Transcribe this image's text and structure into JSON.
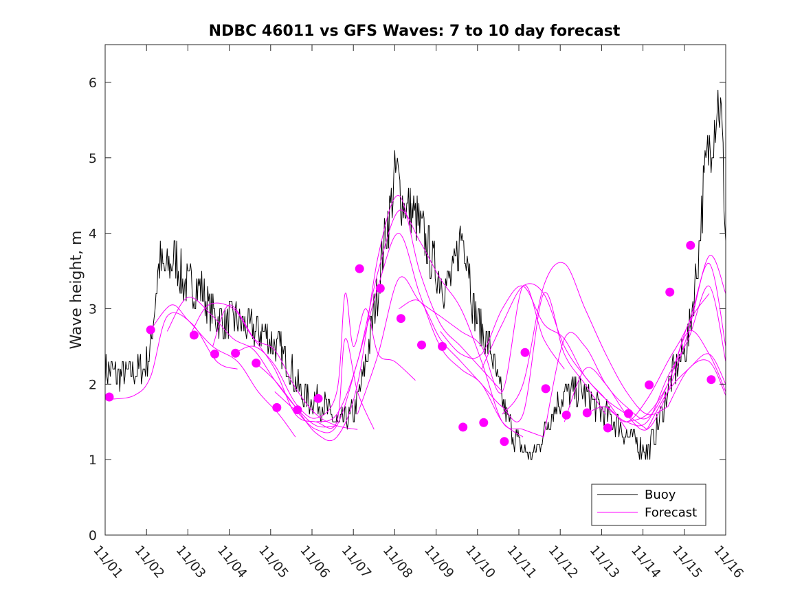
{
  "chart_data": {
    "type": "line",
    "title": "NDBC 46011 vs GFS Waves: 7 to 10 day forecast",
    "xlabel": "",
    "ylabel": "Wave height, m",
    "xlim": [
      0,
      15
    ],
    "ylim": [
      0,
      6.5
    ],
    "yticks": [
      0,
      1,
      2,
      3,
      4,
      5,
      6
    ],
    "ytick_labels": [
      "0",
      "1",
      "2",
      "3",
      "4",
      "5",
      "6"
    ],
    "x_unit": "days since 11/01",
    "xticks": [
      0,
      1,
      2,
      3,
      4,
      5,
      6,
      7,
      8,
      9,
      10,
      11,
      12,
      13,
      14,
      15
    ],
    "xtick_labels": [
      "11/01",
      "11/02",
      "11/03",
      "11/04",
      "11/05",
      "11/06",
      "11/07",
      "11/08",
      "11/09",
      "11/10",
      "11/11",
      "11/12",
      "11/13",
      "11/14",
      "11/15",
      "11/16"
    ],
    "legend": {
      "position": "bottom-right",
      "entries": [
        "Buoy",
        "Forecast"
      ]
    },
    "colors": {
      "buoy": "#000000",
      "forecast": "#ff00ff"
    },
    "buoy_anchors": {
      "x": [
        0,
        0.3,
        0.6,
        0.9,
        1.0,
        1.1,
        1.3,
        1.5,
        1.7,
        1.9,
        2.1,
        2.3,
        2.5,
        2.7,
        2.9,
        3.1,
        3.3,
        3.5,
        3.7,
        3.9,
        4.1,
        4.3,
        4.5,
        4.7,
        4.9,
        5.1,
        5.3,
        5.5,
        5.65,
        5.8,
        6.0,
        6.2,
        6.4,
        6.6,
        6.8,
        6.9,
        7.0,
        7.05,
        7.2,
        7.4,
        7.6,
        7.8,
        8.0,
        8.2,
        8.4,
        8.6,
        8.75,
        8.9,
        9.1,
        9.3,
        9.5,
        9.7,
        9.9,
        10.1,
        10.3,
        10.5,
        10.7,
        10.9,
        11.1,
        11.3,
        11.5,
        11.7,
        11.9,
        12.1,
        12.3,
        12.5,
        12.7,
        12.9,
        13.1,
        13.3,
        13.5,
        13.7,
        13.9,
        14.1,
        14.3,
        14.5,
        14.7,
        14.8,
        14.9,
        15.0
      ],
      "y": [
        2.2,
        2.1,
        2.15,
        2.2,
        2.3,
        2.5,
        3.6,
        3.5,
        3.7,
        3.3,
        3.3,
        3.3,
        3.0,
        2.9,
        2.8,
        2.9,
        2.8,
        2.75,
        2.7,
        2.65,
        2.5,
        2.4,
        2.2,
        1.9,
        1.8,
        1.8,
        1.7,
        1.55,
        1.45,
        1.5,
        1.6,
        2.0,
        2.6,
        3.3,
        4.1,
        4.3,
        4.7,
        4.8,
        4.4,
        4.3,
        4.1,
        3.8,
        3.5,
        3.3,
        3.4,
        4.0,
        3.8,
        3.0,
        2.7,
        2.5,
        2.0,
        1.6,
        1.3,
        1.15,
        1.05,
        1.2,
        1.5,
        1.7,
        1.85,
        1.9,
        1.9,
        1.8,
        1.7,
        1.6,
        1.5,
        1.4,
        1.3,
        1.2,
        1.1,
        1.35,
        1.7,
        2.1,
        2.3,
        2.6,
        3.5,
        4.8,
        5.4,
        5.8,
        5.5,
        3.9
      ]
    },
    "markers": {
      "x": [
        0.1,
        1.1,
        2.15,
        2.65,
        3.15,
        3.65,
        4.15,
        4.65,
        5.15,
        6.15,
        6.65,
        7.15,
        7.65,
        8.15,
        8.65,
        9.15,
        9.65,
        10.15,
        10.65,
        11.15,
        11.65,
        12.15,
        12.65,
        13.15,
        13.65,
        14.15,
        14.65
      ],
      "y": [
        1.83,
        2.72,
        2.65,
        2.4,
        2.41,
        2.28,
        1.69,
        1.66,
        1.81,
        3.53,
        3.27,
        2.87,
        2.52,
        2.5,
        1.43,
        1.49,
        1.24,
        2.42,
        1.94,
        1.59,
        1.62,
        1.42,
        1.61,
        1.99,
        3.22,
        3.84,
        2.06
      ]
    },
    "forecast_series": [
      {
        "x": [
          0.1,
          0.7,
          1.1,
          1.5,
          2.1,
          2.7,
          3.2
        ],
        "y": [
          1.8,
          1.85,
          2.1,
          2.9,
          2.8,
          2.3,
          2.2
        ]
      },
      {
        "x": [
          1.1,
          1.6,
          2.0,
          2.6,
          3.2,
          3.7,
          4.2,
          4.6
        ],
        "y": [
          2.72,
          3.05,
          2.85,
          2.5,
          2.3,
          1.9,
          1.6,
          1.3
        ]
      },
      {
        "x": [
          1.5,
          2.0,
          2.6,
          3.1,
          3.6,
          4.1,
          4.6,
          5.1,
          5.6
        ],
        "y": [
          2.7,
          3.15,
          2.9,
          2.6,
          2.45,
          2.05,
          1.7,
          1.45,
          1.45
        ]
      },
      {
        "x": [
          2.1,
          2.5,
          3.1,
          3.6,
          4.1,
          4.6,
          5.1,
          5.6,
          6.1
        ],
        "y": [
          2.7,
          3.05,
          3.0,
          2.6,
          2.45,
          1.95,
          1.6,
          1.45,
          1.4
        ]
      },
      {
        "x": [
          2.6,
          3.0,
          3.6,
          4.1,
          4.6,
          5.1,
          5.6,
          5.8,
          6.1,
          6.5
        ],
        "y": [
          2.5,
          3.05,
          2.6,
          2.2,
          1.6,
          1.5,
          1.5,
          2.6,
          1.9,
          1.4
        ]
      },
      {
        "x": [
          3.1,
          3.6,
          4.1,
          4.6,
          5.1,
          5.6,
          5.8,
          6.0,
          6.3,
          6.6,
          7.0,
          7.5
        ],
        "y": [
          2.4,
          2.5,
          2.25,
          1.75,
          1.55,
          1.9,
          3.2,
          2.5,
          3.0,
          2.4,
          2.3,
          2.05
        ]
      },
      {
        "x": [
          3.6,
          4.1,
          4.6,
          5.1,
          5.6,
          6.1,
          6.6,
          7.1,
          7.6,
          8.1,
          8.6,
          9.1,
          9.6
        ],
        "y": [
          2.3,
          2.05,
          1.7,
          1.35,
          1.3,
          2.0,
          3.7,
          4.5,
          3.5,
          2.8,
          2.5,
          2.2,
          1.9
        ]
      },
      {
        "x": [
          4.1,
          4.6,
          5.1,
          5.6,
          6.1,
          6.6,
          7.1,
          7.6,
          8.1,
          8.6,
          9.1,
          9.6,
          10.1
        ],
        "y": [
          1.9,
          1.65,
          1.4,
          1.45,
          2.3,
          3.3,
          4.0,
          3.2,
          2.5,
          2.2,
          2.0,
          1.5,
          1.3
        ]
      },
      {
        "x": [
          5.1,
          5.6,
          6.1,
          6.6,
          7.1,
          7.6,
          8.1,
          8.6,
          9.1,
          9.6,
          10.1,
          10.6
        ],
        "y": [
          1.5,
          1.6,
          2.3,
          3.5,
          4.3,
          3.9,
          3.4,
          3.0,
          2.3,
          1.5,
          1.4,
          1.3
        ]
      },
      {
        "x": [
          6.1,
          6.6,
          7.1,
          7.6,
          8.1,
          8.6,
          9.1,
          9.6,
          10.1,
          10.6,
          11.1
        ],
        "y": [
          1.6,
          2.4,
          3.4,
          3.1,
          2.9,
          2.7,
          2.5,
          1.9,
          3.3,
          2.6,
          2.2
        ]
      },
      {
        "x": [
          7.1,
          7.6,
          8.1,
          8.6,
          9.1,
          9.6,
          10.1,
          10.6,
          11.1,
          11.6,
          12.1
        ],
        "y": [
          3.0,
          3.1,
          2.6,
          2.3,
          2.0,
          1.7,
          1.6,
          3.2,
          2.4,
          2.0,
          1.6
        ]
      },
      {
        "x": [
          8.1,
          8.6,
          9.1,
          9.6,
          10.1,
          10.6,
          11.1,
          11.6,
          12.1,
          12.6
        ],
        "y": [
          2.7,
          2.4,
          2.4,
          3.0,
          3.3,
          2.8,
          2.6,
          2.1,
          1.8,
          1.4
        ]
      },
      {
        "x": [
          9.1,
          9.6,
          10.1,
          10.6,
          11.1,
          11.6,
          12.1,
          12.6,
          13.1
        ],
        "y": [
          2.2,
          2.8,
          3.3,
          3.2,
          2.5,
          2.1,
          1.8,
          1.6,
          1.4
        ]
      },
      {
        "x": [
          9.6,
          10.1,
          10.6,
          11.1,
          11.6,
          12.1,
          12.6,
          13.1,
          13.6
        ],
        "y": [
          1.6,
          2.0,
          3.3,
          3.6,
          3.0,
          2.4,
          1.9,
          1.6,
          1.7
        ]
      },
      {
        "x": [
          10.6,
          11.1,
          11.6,
          12.1,
          12.6,
          13.1,
          13.6,
          14.1,
          14.6
        ],
        "y": [
          1.3,
          2.6,
          2.5,
          2.0,
          1.7,
          1.55,
          2.0,
          2.8,
          3.2
        ]
      },
      {
        "x": [
          11.1,
          11.6,
          12.1,
          12.6,
          13.1,
          13.6,
          14.1,
          14.6,
          15.0
        ],
        "y": [
          1.5,
          2.2,
          2.0,
          1.6,
          1.4,
          1.9,
          2.7,
          3.7,
          3.2
        ]
      },
      {
        "x": [
          11.6,
          12.1,
          12.6,
          13.1,
          13.6,
          14.1,
          14.6,
          15.0
        ],
        "y": [
          1.6,
          1.7,
          1.5,
          1.8,
          2.3,
          2.8,
          3.6,
          2.5
        ]
      },
      {
        "x": [
          12.1,
          12.6,
          13.1,
          13.6,
          14.1,
          14.6,
          15.0
        ],
        "y": [
          1.7,
          1.5,
          1.5,
          2.1,
          2.6,
          3.3,
          2.3
        ]
      },
      {
        "x": [
          12.6,
          13.1,
          13.6,
          14.1,
          14.6,
          15.0
        ],
        "y": [
          1.5,
          1.6,
          2.0,
          2.7,
          2.4,
          1.9
        ]
      },
      {
        "x": [
          13.1,
          13.6,
          14.1,
          14.6,
          15.0
        ],
        "y": [
          1.4,
          1.9,
          2.2,
          2.4,
          2.0
        ]
      },
      {
        "x": [
          13.6,
          14.1,
          14.6,
          15.0
        ],
        "y": [
          1.7,
          2.2,
          2.3,
          1.85
        ]
      }
    ]
  }
}
